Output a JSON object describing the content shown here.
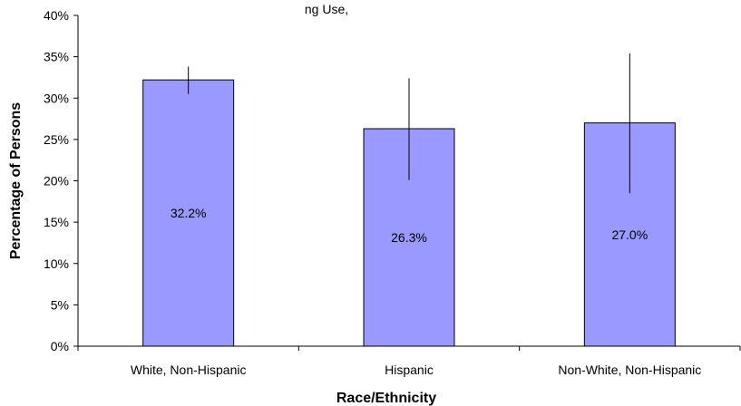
{
  "chart_data": {
    "type": "bar",
    "title": "ng Use, [title partially cut off]",
    "xlabel": "Race/Ethnicity",
    "ylabel": "Percentage of Persons",
    "categories": [
      "White, Non-Hispanic",
      "Hispanic",
      "Non-White, Non-Hispanic"
    ],
    "values": [
      32.2,
      26.3,
      27.0
    ],
    "value_labels": [
      "32.2%",
      "26.3%",
      "27.0%"
    ],
    "error_bars": [
      {
        "low": 30.5,
        "high": 33.8
      },
      {
        "low": 20.1,
        "high": 32.4
      },
      {
        "low": 18.5,
        "high": 35.4
      }
    ],
    "ylim": [
      0,
      40
    ],
    "yticks": [
      0,
      5,
      10,
      15,
      20,
      25,
      30,
      35,
      40
    ],
    "ytick_labels": [
      "0%",
      "5%",
      "10%",
      "15%",
      "20%",
      "25%",
      "30%",
      "35%",
      "40%"
    ],
    "grid": false,
    "legend": "none",
    "colors": {
      "bar_fill": "#9999ff",
      "bar_stroke": "#000000"
    }
  }
}
